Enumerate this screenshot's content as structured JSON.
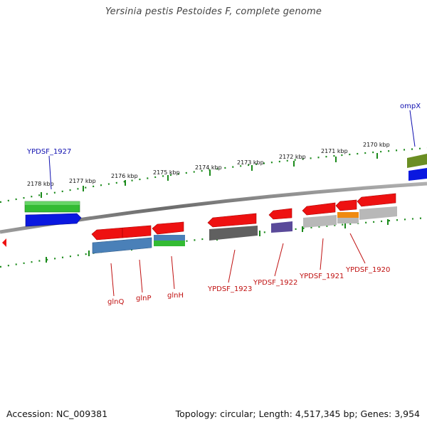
{
  "title": "Yersinia pestis Pestoides F, complete genome",
  "footer": {
    "accession": "Accession: NC_009381",
    "topology": "Topology: circular; Length: 4,517,345 bp; Genes: 3,954"
  },
  "ruler": {
    "ticks": [
      "2178 kbp",
      "2177 kbp",
      "2176 kbp",
      "2175 kbp",
      "2174 kbp",
      "2173 kbp",
      "2172 kbp",
      "2171 kbp",
      "2170 kbp"
    ]
  },
  "labels_top": [
    "YPDSF_1927",
    "ompX"
  ],
  "labels_bottom": [
    "glnQ",
    "glnP",
    "glnH",
    "YPDSF_1923",
    "YPDSF_1922",
    "YPDSF_1921",
    "YPDSF_1920"
  ],
  "colors": {
    "backbone": "#7a7a7a",
    "ruler_ticks": "#1a8a1a",
    "gene": "#ee1111",
    "cds_blue": "#0a18e0",
    "cds_green": "#33bb33",
    "steel_blue": "#4a80b8",
    "dark_gray": "#606060",
    "purple": "#5a4a9a",
    "light_gray": "#b8b8b8",
    "orange": "#f08a10",
    "olive": "#6b8e23",
    "top_label": "#1010b0",
    "bottom_label": "#c01010"
  }
}
